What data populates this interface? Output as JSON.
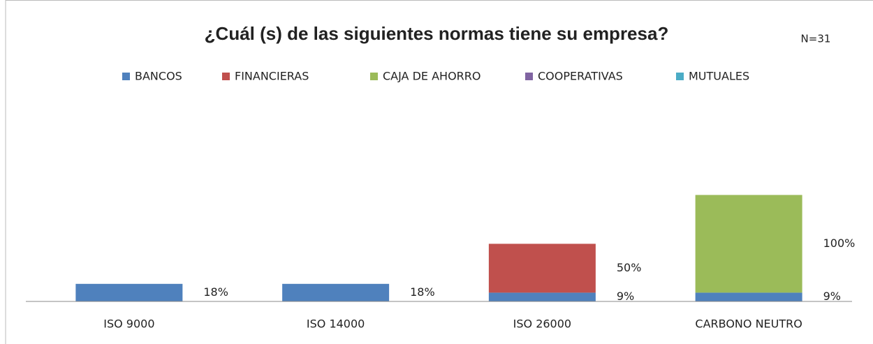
{
  "chart_data": {
    "type": "stacked-bar",
    "title": "¿Cuál (s) de las siguientes normas tiene su empresa?",
    "annotation": "N=31",
    "categories": [
      "ISO 9000",
      "ISO 14000",
      "ISO 26000",
      "CARBONO NEUTRO"
    ],
    "series": [
      {
        "name": "BANCOS",
        "color": "#4f81bd",
        "values": [
          18,
          18,
          9,
          9
        ],
        "value_labels": [
          "18%",
          "18%",
          "9%",
          "9%"
        ]
      },
      {
        "name": "FINANCIERAS",
        "color": "#c0504d",
        "values": [
          null,
          null,
          50,
          null
        ],
        "value_labels": [
          null,
          null,
          "50%",
          null
        ]
      },
      {
        "name": "CAJA DE AHORRO",
        "color": "#9bbb59",
        "values": [
          null,
          null,
          null,
          100
        ],
        "value_labels": [
          null,
          null,
          null,
          "100%"
        ]
      },
      {
        "name": "COOPERATIVAS",
        "color": "#8064a2",
        "values": [
          null,
          null,
          null,
          null
        ]
      },
      {
        "name": "MUTUALES",
        "color": "#4bacc6",
        "values": [
          null,
          null,
          null,
          null
        ]
      }
    ],
    "ylim": [
      0,
      200
    ],
    "legend": "top"
  }
}
